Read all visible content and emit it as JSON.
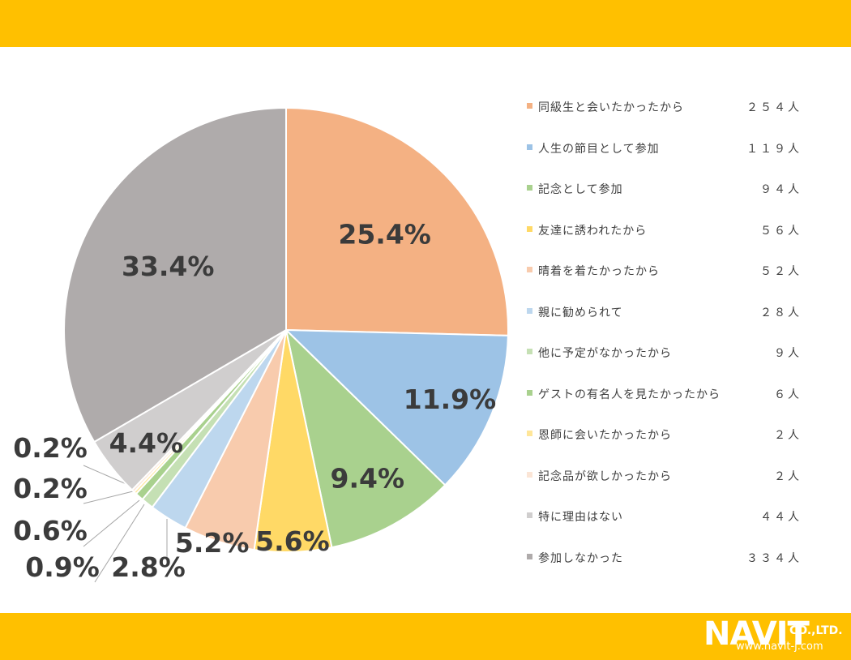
{
  "chart_data": {
    "type": "pie",
    "title": "",
    "slices": [
      {
        "label": "同級生と会いたかったから",
        "count": "２５４人",
        "value": 25.4,
        "pct_label": "25.4%",
        "color": "#F4B183"
      },
      {
        "label": "人生の節目として参加",
        "count": "１１９人",
        "value": 11.9,
        "pct_label": "11.9%",
        "color": "#9DC3E6"
      },
      {
        "label": "記念として参加",
        "count": "９４人",
        "value": 9.4,
        "pct_label": "9.4%",
        "color": "#A9D18E"
      },
      {
        "label": "友達に誘われたから",
        "count": "５６人",
        "value": 5.6,
        "pct_label": "5.6%",
        "color": "#FFD966"
      },
      {
        "label": "晴着を着たかったから",
        "count": "５２人",
        "value": 5.2,
        "pct_label": "5.2%",
        "color": "#F8CBAD"
      },
      {
        "label": "親に勧められて",
        "count": "２８人",
        "value": 2.8,
        "pct_label": "2.8%",
        "color": "#BDD7EE"
      },
      {
        "label": "他に予定がなかったから",
        "count": "９人",
        "value": 0.9,
        "pct_label": "0.9%",
        "color": "#C5E0B4"
      },
      {
        "label": "ゲストの有名人を見たかったから",
        "count": "６人",
        "value": 0.6,
        "pct_label": "0.6%",
        "color": "#A9D18E"
      },
      {
        "label": "恩師に会いたかったから",
        "count": "２人",
        "value": 0.2,
        "pct_label": "0.2%",
        "color": "#FFE699"
      },
      {
        "label": "記念品が欲しかったから",
        "count": "２人",
        "value": 0.2,
        "pct_label": "0.2%",
        "color": "#FBE5D6"
      },
      {
        "label": "特に理由はない",
        "count": "４４人",
        "value": 4.4,
        "pct_label": "4.4%",
        "color": "#D0CECE"
      },
      {
        "label": "参加しなかった",
        "count": "３３４人",
        "value": 33.4,
        "pct_label": "33.4%",
        "color": "#AFABAB"
      }
    ],
    "legend_position": "right"
  },
  "brand": {
    "logo_main": "NAVIT",
    "logo_sub": "CO.,LTD.",
    "url": "www.navit-j.com",
    "band_color": "#FFC000"
  }
}
